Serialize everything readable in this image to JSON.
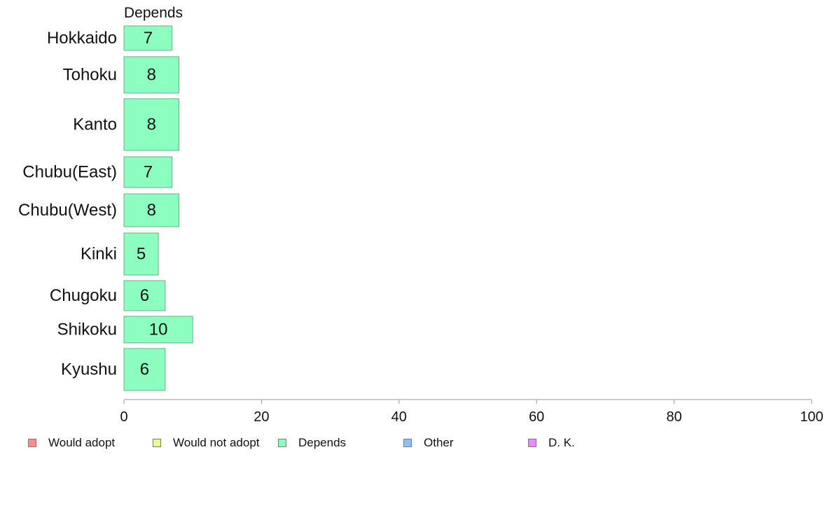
{
  "chart_data": {
    "type": "bar",
    "orientation": "horizontal",
    "panel_title": "Depends",
    "categories": [
      "Hokkaido",
      "Tohoku",
      "Kanto",
      "Chubu(East)",
      "Chubu(West)",
      "Kinki",
      "Chugoku",
      "Shikoku",
      "Kyushu"
    ],
    "series": [
      {
        "name": "Depends",
        "values": [
          7,
          8,
          8,
          7,
          8,
          5,
          6,
          10,
          6
        ],
        "color": "#8CFFC0"
      }
    ],
    "xlim": [
      0,
      100
    ],
    "x_ticks": [
      0,
      20,
      40,
      60,
      80,
      100
    ],
    "grid": false,
    "legend_position": "bottom",
    "legend": [
      {
        "label": "Would adopt",
        "color": "#FF8C8C"
      },
      {
        "label": "Would not adopt",
        "color": "#E6FF8C"
      },
      {
        "label": "Depends",
        "color": "#8CFFC0"
      },
      {
        "label": "Other",
        "color": "#8CBFFF"
      },
      {
        "label": "D. K.",
        "color": "#E68CFF"
      }
    ]
  }
}
